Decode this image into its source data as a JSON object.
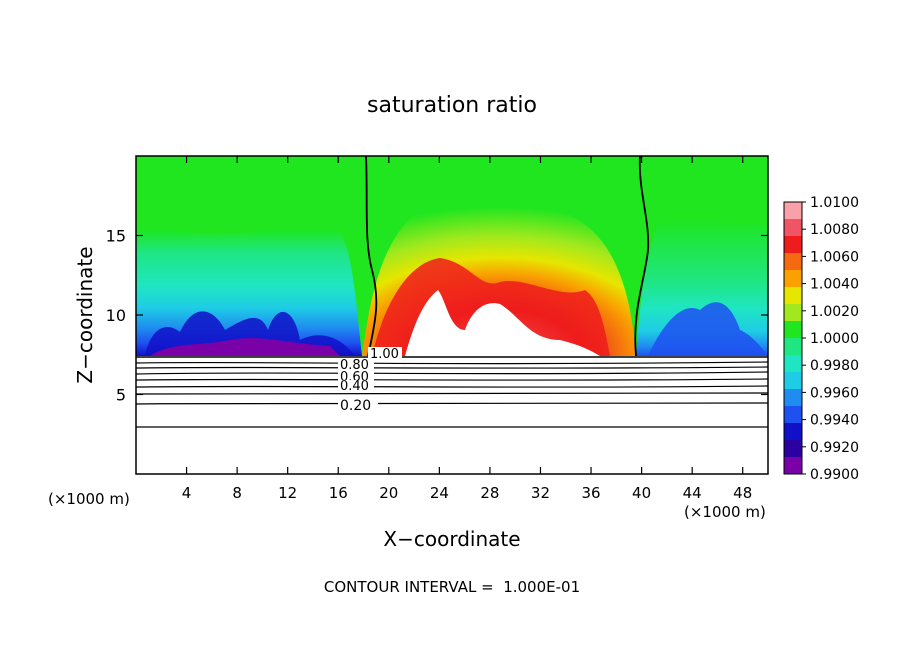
{
  "chart_data": {
    "type": "heatmap",
    "title": "saturation ratio",
    "xlabel": "X−coordinate",
    "ylabel": "Z−coordinate",
    "x_unit_label": "(×1000 m)",
    "y_unit_label": "(×1000 m)",
    "xlim": [
      0,
      50
    ],
    "ylim": [
      0,
      20
    ],
    "x_ticks": [
      4,
      8,
      12,
      16,
      20,
      24,
      28,
      32,
      36,
      40,
      44,
      48
    ],
    "y_ticks": [
      5,
      10,
      15
    ],
    "colorbar": {
      "ticks": [
        "1.0100",
        "1.0080",
        "1.0060",
        "1.0040",
        "1.0020",
        "1.0000",
        "0.9980",
        "0.9960",
        "0.9940",
        "0.9920",
        "0.9900"
      ],
      "range": [
        0.99,
        1.01
      ],
      "colors": [
        "#f9a0a8",
        "#f05566",
        "#ee1c1c",
        "#f46a10",
        "#faa100",
        "#e6e600",
        "#a2e81e",
        "#1fe61f",
        "#1fe681",
        "#1fe6c2",
        "#1fcce6",
        "#1f8cf0",
        "#1f50f0",
        "#1010c8",
        "#2a00a0",
        "#7a00a8"
      ]
    },
    "contour_labels": [
      "1.00",
      "0.80",
      "0.60",
      "0.40",
      "0.20"
    ],
    "footer": "CONTOUR INTERVAL =  1.000E-01"
  }
}
